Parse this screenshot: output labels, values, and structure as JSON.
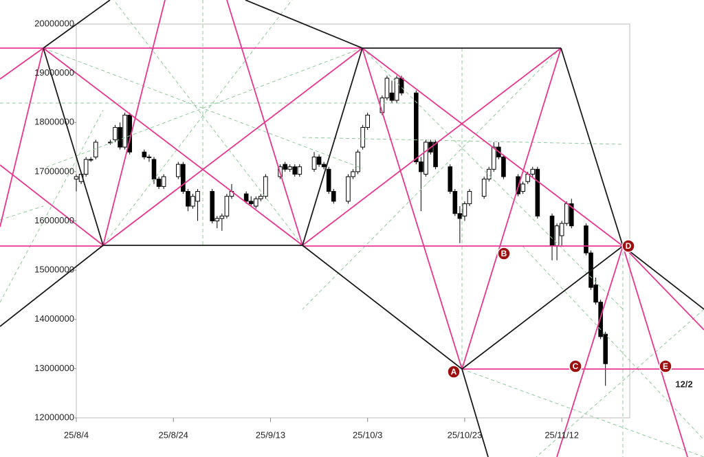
{
  "chart_data": {
    "type": "candlestick",
    "x": [
      "25/8/4",
      "25/8/5",
      "25/8/6",
      "25/8/7",
      "25/8/8",
      "25/8/11",
      "25/8/12",
      "25/8/13",
      "25/8/14",
      "25/8/15",
      "25/8/18",
      "25/8/19",
      "25/8/20",
      "25/8/21",
      "25/8/22",
      "25/8/25",
      "25/8/26",
      "25/8/27",
      "25/8/28",
      "25/8/29",
      "25/9/1",
      "25/9/2",
      "25/9/3",
      "25/9/4",
      "25/9/5",
      "25/9/8",
      "25/9/9",
      "25/9/10",
      "25/9/11",
      "25/9/12",
      "25/9/15",
      "25/9/16",
      "25/9/17",
      "25/9/18",
      "25/9/19",
      "25/9/22",
      "25/9/23",
      "25/9/24",
      "25/9/25",
      "25/9/26",
      "25/9/29",
      "25/9/30",
      "25/10/1",
      "25/10/2",
      "25/10/3",
      "25/10/6",
      "25/10/7",
      "25/10/8",
      "25/10/9",
      "25/10/10",
      "25/10/13",
      "25/10/14",
      "25/10/15",
      "25/10/16",
      "25/10/17",
      "25/10/20",
      "25/10/21",
      "25/10/22",
      "25/10/23",
      "25/10/24",
      "25/10/27",
      "25/10/28",
      "25/10/29",
      "25/10/30",
      "25/10/31",
      "25/11/3",
      "25/11/4",
      "25/11/5",
      "25/11/6",
      "25/11/7",
      "25/11/10",
      "25/11/11",
      "25/11/12",
      "25/11/13",
      "25/11/14",
      "25/11/17",
      "25/11/18",
      "25/11/19",
      "25/11/20",
      "25/11/21"
    ],
    "open": [
      16850000,
      16800000,
      16950000,
      17250000,
      17300000,
      17600000,
      17650000,
      17900000,
      17500000,
      18150000,
      17400000,
      17300000,
      17250000,
      16850000,
      16700000,
      16900000,
      17150000,
      16600000,
      16300000,
      16400000,
      16600000,
      16000000,
      16050000,
      16100000,
      16500000,
      16550000,
      16400000,
      16300000,
      16450000,
      16500000,
      16900000,
      17150000,
      17050000,
      17100000,
      16950000,
      17050000,
      17300000,
      17150000,
      17050000,
      16600000,
      16400000,
      16900000,
      17000000,
      17500000,
      17900000,
      18200000,
      18500000,
      18600000,
      18450000,
      18900000,
      18600000,
      17200000,
      16950000,
      17600000,
      17600000,
      17100000,
      16600000,
      16150000,
      16100000,
      16350000,
      16500000,
      16850000,
      17050000,
      17500000,
      17300000,
      16900000,
      16600000,
      16800000,
      16950000,
      17050000,
      16100000,
      15500000,
      15700000,
      15950000,
      16350000,
      15900000,
      15350000,
      14700000,
      14350000,
      13700000
    ],
    "high": [
      16950000,
      17000000,
      17300000,
      17300000,
      17650000,
      17650000,
      17950000,
      18000000,
      18200000,
      18200000,
      17450000,
      17350000,
      17300000,
      16900000,
      16950000,
      17200000,
      17200000,
      16650000,
      16550000,
      16650000,
      16650000,
      16100000,
      16150000,
      16550000,
      16750000,
      16600000,
      16500000,
      16500000,
      16550000,
      16950000,
      17150000,
      17200000,
      17150000,
      17150000,
      17150000,
      17400000,
      17350000,
      17200000,
      17100000,
      16650000,
      16950000,
      17050000,
      17450000,
      17950000,
      18200000,
      18550000,
      18950000,
      18850000,
      18950000,
      18950000,
      18650000,
      17300000,
      17650000,
      17650000,
      17650000,
      17150000,
      16650000,
      16300000,
      16400000,
      16650000,
      16900000,
      17100000,
      17600000,
      17600000,
      17350000,
      16950000,
      16800000,
      17000000,
      17100000,
      17100000,
      16150000,
      15950000,
      16000000,
      16400000,
      16450000,
      15950000,
      15400000,
      14850000,
      14400000,
      13750000
    ],
    "low": [
      16600000,
      16750000,
      16900000,
      17200000,
      17250000,
      17550000,
      17600000,
      17450000,
      17450000,
      17350000,
      17250000,
      17200000,
      16750000,
      16650000,
      16650000,
      16850000,
      16550000,
      16200000,
      16250000,
      16000000,
      15950000,
      15850000,
      15800000,
      16050000,
      16450000,
      16350000,
      16300000,
      16250000,
      16400000,
      16450000,
      16850000,
      17000000,
      17000000,
      16900000,
      16900000,
      17000000,
      17100000,
      17050000,
      16550000,
      16350000,
      16350000,
      16850000,
      16950000,
      17450000,
      17850000,
      18150000,
      18450000,
      18400000,
      18400000,
      18550000,
      17150000,
      16200000,
      16900000,
      17350000,
      17050000,
      16550000,
      16100000,
      15550000,
      16000000,
      16300000,
      16450000,
      16800000,
      17000000,
      17250000,
      16850000,
      16500000,
      16550000,
      16750000,
      16900000,
      16050000,
      15200000,
      15200000,
      15500000,
      15900000,
      15850000,
      15300000,
      14600000,
      14300000,
      13600000,
      12650000
    ],
    "close": [
      16900000,
      16950000,
      17250000,
      17250000,
      17600000,
      17600000,
      17900000,
      17500000,
      18150000,
      17400000,
      17300000,
      17300000,
      16850000,
      16700000,
      16900000,
      17150000,
      16600000,
      16300000,
      16500000,
      16600000,
      16000000,
      16050000,
      16100000,
      16500000,
      16600000,
      16400000,
      16350000,
      16450000,
      16500000,
      16900000,
      17100000,
      17050000,
      17100000,
      16950000,
      17100000,
      17300000,
      17150000,
      17100000,
      16600000,
      16400000,
      16900000,
      17000000,
      17400000,
      17900000,
      18150000,
      18500000,
      18900000,
      18450000,
      18900000,
      18600000,
      17200000,
      17000000,
      17600000,
      17400000,
      17100000,
      16600000,
      16150000,
      16050000,
      16350000,
      16600000,
      16850000,
      17050000,
      17500000,
      17300000,
      16900000,
      16550000,
      16750000,
      16950000,
      17050000,
      16100000,
      15500000,
      15900000,
      15950000,
      16350000,
      15900000,
      15350000,
      14650000,
      14350000,
      13650000,
      13100000
    ],
    "up_color": "#ffffff",
    "down_color": "#000000",
    "xlim": [
      "25/8/4",
      "25/11/26"
    ],
    "xticks": [
      "25/8/4",
      "25/8/24",
      "25/9/13",
      "25/10/3",
      "25/10/23",
      "25/11/12"
    ],
    "ylim": [
      12000000,
      20000000
    ],
    "yticks": [
      12000000,
      13000000,
      14000000,
      15000000,
      16000000,
      17000000,
      18000000,
      19000000,
      20000000
    ],
    "point_labels": [
      "A",
      "B",
      "C",
      "D",
      "E"
    ],
    "note": "12/2"
  }
}
